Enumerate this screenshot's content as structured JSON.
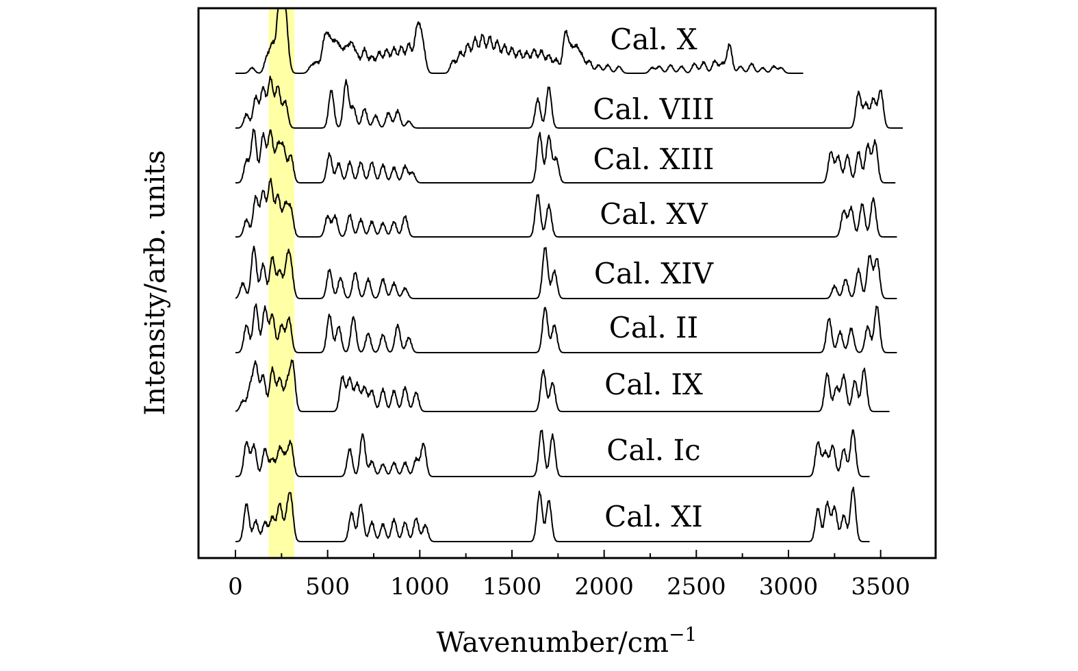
{
  "chart_data": {
    "type": "line",
    "xlabel": "Wavenumber/cm",
    "xlabel_superscript": "−1",
    "ylabel": "Intensity/arb. units",
    "xlim": [
      -200,
      3800
    ],
    "x_ticks": [
      0,
      500,
      1000,
      1500,
      2000,
      2500,
      3000,
      3500
    ],
    "y_ticks": false,
    "grid": false,
    "legend": "none",
    "highlight_band": {
      "x_range": [
        180,
        320
      ],
      "color": "#ffff88"
    },
    "series": [
      {
        "name": "Cal. X",
        "x_range": [
          0,
          3080
        ],
        "bands": [
          [
            90,
            8
          ],
          [
            170,
            22
          ],
          [
            200,
            40
          ],
          [
            235,
            65
          ],
          [
            250,
            85
          ],
          [
            265,
            60
          ],
          [
            280,
            30
          ],
          [
            410,
            10
          ],
          [
            440,
            15
          ],
          [
            480,
            38
          ],
          [
            500,
            34
          ],
          [
            520,
            30
          ],
          [
            545,
            36
          ],
          [
            570,
            28
          ],
          [
            600,
            33
          ],
          [
            630,
            40
          ],
          [
            660,
            25
          ],
          [
            700,
            35
          ],
          [
            740,
            24
          ],
          [
            780,
            30
          ],
          [
            820,
            34
          ],
          [
            860,
            36
          ],
          [
            900,
            38
          ],
          [
            940,
            42
          ],
          [
            980,
            47
          ],
          [
            1000,
            44
          ],
          [
            1020,
            28
          ],
          [
            1180,
            18
          ],
          [
            1220,
            30
          ],
          [
            1260,
            42
          ],
          [
            1300,
            50
          ],
          [
            1340,
            55
          ],
          [
            1380,
            52
          ],
          [
            1420,
            46
          ],
          [
            1460,
            40
          ],
          [
            1500,
            36
          ],
          [
            1540,
            32
          ],
          [
            1580,
            30
          ],
          [
            1620,
            34
          ],
          [
            1660,
            32
          ],
          [
            1700,
            26
          ],
          [
            1740,
            20
          ],
          [
            1790,
            58
          ],
          [
            1820,
            32
          ],
          [
            1850,
            35
          ],
          [
            1880,
            24
          ],
          [
            1920,
            18
          ],
          [
            1970,
            12
          ],
          [
            2020,
            12
          ],
          [
            2080,
            10
          ],
          [
            2260,
            8
          ],
          [
            2300,
            10
          ],
          [
            2360,
            12
          ],
          [
            2420,
            10
          ],
          [
            2490,
            14
          ],
          [
            2540,
            16
          ],
          [
            2600,
            18
          ],
          [
            2640,
            14
          ],
          [
            2680,
            42
          ],
          [
            2740,
            10
          ],
          [
            2800,
            14
          ],
          [
            2860,
            8
          ],
          [
            2920,
            10
          ],
          [
            2960,
            8
          ]
        ]
      },
      {
        "name": "Cal. VIII",
        "x_range": [
          0,
          3620
        ],
        "bands": [
          [
            60,
            20
          ],
          [
            110,
            45
          ],
          [
            150,
            58
          ],
          [
            190,
            72
          ],
          [
            230,
            60
          ],
          [
            270,
            38
          ],
          [
            520,
            55
          ],
          [
            600,
            68
          ],
          [
            640,
            30
          ],
          [
            700,
            28
          ],
          [
            760,
            18
          ],
          [
            830,
            22
          ],
          [
            880,
            25
          ],
          [
            940,
            10
          ],
          [
            1640,
            42
          ],
          [
            1700,
            60
          ],
          [
            3380,
            52
          ],
          [
            3420,
            35
          ],
          [
            3460,
            42
          ],
          [
            3500,
            55
          ]
        ]
      },
      {
        "name": "Cal. XIII",
        "x_range": [
          0,
          3580
        ],
        "bands": [
          [
            60,
            32
          ],
          [
            100,
            78
          ],
          [
            150,
            70
          ],
          [
            190,
            75
          ],
          [
            230,
            52
          ],
          [
            260,
            50
          ],
          [
            300,
            40
          ],
          [
            510,
            42
          ],
          [
            560,
            28
          ],
          [
            620,
            30
          ],
          [
            680,
            30
          ],
          [
            740,
            30
          ],
          [
            800,
            26
          ],
          [
            860,
            22
          ],
          [
            920,
            24
          ],
          [
            960,
            15
          ],
          [
            1650,
            72
          ],
          [
            1700,
            68
          ],
          [
            1740,
            35
          ],
          [
            3230,
            45
          ],
          [
            3270,
            38
          ],
          [
            3320,
            40
          ],
          [
            3380,
            45
          ],
          [
            3430,
            55
          ],
          [
            3470,
            60
          ]
        ]
      },
      {
        "name": "Cal. XV",
        "x_range": [
          0,
          3590
        ],
        "bands": [
          [
            60,
            25
          ],
          [
            110,
            58
          ],
          [
            150,
            66
          ],
          [
            190,
            82
          ],
          [
            230,
            60
          ],
          [
            270,
            45
          ],
          [
            300,
            40
          ],
          [
            500,
            30
          ],
          [
            540,
            30
          ],
          [
            620,
            32
          ],
          [
            680,
            25
          ],
          [
            740,
            22
          ],
          [
            800,
            20
          ],
          [
            860,
            22
          ],
          [
            920,
            30
          ],
          [
            1640,
            62
          ],
          [
            1700,
            46
          ],
          [
            3300,
            38
          ],
          [
            3340,
            42
          ],
          [
            3400,
            48
          ],
          [
            3460,
            56
          ]
        ]
      },
      {
        "name": "Cal. XIV",
        "x_range": [
          0,
          3590
        ],
        "bands": [
          [
            40,
            22
          ],
          [
            100,
            75
          ],
          [
            150,
            50
          ],
          [
            200,
            60
          ],
          [
            240,
            40
          ],
          [
            280,
            48
          ],
          [
            300,
            42
          ],
          [
            510,
            42
          ],
          [
            570,
            30
          ],
          [
            650,
            38
          ],
          [
            720,
            28
          ],
          [
            800,
            28
          ],
          [
            860,
            22
          ],
          [
            920,
            15
          ],
          [
            1680,
            75
          ],
          [
            1730,
            40
          ],
          [
            3250,
            18
          ],
          [
            3310,
            28
          ],
          [
            3380,
            42
          ],
          [
            3440,
            62
          ],
          [
            3480,
            58
          ]
        ]
      },
      {
        "name": "Cal. II",
        "x_range": [
          0,
          3590
        ],
        "bands": [
          [
            60,
            40
          ],
          [
            110,
            70
          ],
          [
            160,
            65
          ],
          [
            200,
            55
          ],
          [
            250,
            40
          ],
          [
            290,
            50
          ],
          [
            510,
            55
          ],
          [
            560,
            38
          ],
          [
            640,
            52
          ],
          [
            720,
            28
          ],
          [
            800,
            26
          ],
          [
            880,
            40
          ],
          [
            940,
            22
          ],
          [
            1680,
            66
          ],
          [
            1730,
            40
          ],
          [
            3220,
            50
          ],
          [
            3280,
            30
          ],
          [
            3340,
            35
          ],
          [
            3430,
            38
          ],
          [
            3480,
            68
          ]
        ]
      },
      {
        "name": "Cal. IX",
        "x_range": [
          0,
          3550
        ],
        "bands": [
          [
            40,
            15
          ],
          [
            80,
            35
          ],
          [
            110,
            68
          ],
          [
            150,
            52
          ],
          [
            200,
            62
          ],
          [
            240,
            48
          ],
          [
            280,
            40
          ],
          [
            310,
            70
          ],
          [
            580,
            50
          ],
          [
            620,
            48
          ],
          [
            660,
            40
          ],
          [
            700,
            35
          ],
          [
            740,
            30
          ],
          [
            800,
            32
          ],
          [
            860,
            30
          ],
          [
            920,
            35
          ],
          [
            980,
            28
          ],
          [
            1670,
            60
          ],
          [
            1720,
            42
          ],
          [
            3210,
            55
          ],
          [
            3260,
            35
          ],
          [
            3300,
            52
          ],
          [
            3360,
            45
          ],
          [
            3410,
            62
          ]
        ]
      },
      {
        "name": "Cal. Ic",
        "x_range": [
          0,
          3440
        ],
        "bands": [
          [
            60,
            50
          ],
          [
            100,
            45
          ],
          [
            160,
            40
          ],
          [
            200,
            25
          ],
          [
            240,
            40
          ],
          [
            270,
            25
          ],
          [
            300,
            48
          ],
          [
            620,
            40
          ],
          [
            690,
            62
          ],
          [
            740,
            22
          ],
          [
            800,
            18
          ],
          [
            860,
            20
          ],
          [
            920,
            20
          ],
          [
            980,
            25
          ],
          [
            1020,
            48
          ],
          [
            1660,
            68
          ],
          [
            1720,
            60
          ],
          [
            3160,
            50
          ],
          [
            3200,
            35
          ],
          [
            3240,
            45
          ],
          [
            3300,
            40
          ],
          [
            3350,
            68
          ]
        ]
      },
      {
        "name": "Cal. XI",
        "x_range": [
          0,
          3440
        ],
        "bands": [
          [
            60,
            55
          ],
          [
            110,
            30
          ],
          [
            160,
            28
          ],
          [
            200,
            35
          ],
          [
            240,
            55
          ],
          [
            280,
            32
          ],
          [
            300,
            58
          ],
          [
            630,
            42
          ],
          [
            680,
            55
          ],
          [
            740,
            28
          ],
          [
            800,
            25
          ],
          [
            860,
            32
          ],
          [
            920,
            28
          ],
          [
            980,
            34
          ],
          [
            1030,
            24
          ],
          [
            1650,
            72
          ],
          [
            1700,
            60
          ],
          [
            3160,
            48
          ],
          [
            3210,
            56
          ],
          [
            3250,
            50
          ],
          [
            3300,
            38
          ],
          [
            3350,
            78
          ]
        ]
      }
    ]
  }
}
